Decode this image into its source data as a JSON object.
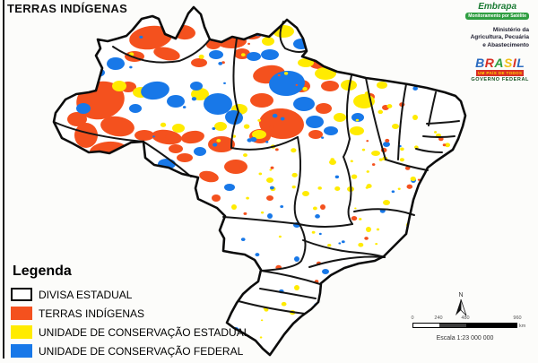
{
  "title": "TERRAS INDÍGENAS",
  "header_logos": {
    "embrapa_name": "Embrapa",
    "embrapa_tagline": "Monitoramento por Satélite",
    "ministry_line1": "Ministério da",
    "ministry_line2": "Agricultura, Pecuária",
    "ministry_line3": "e Abastecimento",
    "brasil": {
      "letters": [
        {
          "ch": "B",
          "color": "#2b6bc0"
        },
        {
          "ch": "R",
          "color": "#d93025"
        },
        {
          "ch": "A",
          "color": "#2e9e41"
        },
        {
          "ch": "S",
          "color": "#f2c017"
        },
        {
          "ch": "I",
          "color": "#d93025"
        },
        {
          "ch": "L",
          "color": "#2b6bc0"
        }
      ],
      "tagline": "UM PAÍS DE TODOS",
      "footer": "GOVERNO FEDERAL"
    }
  },
  "legend": {
    "title": "Legenda",
    "items": [
      {
        "label": "DIVISA ESTADUAL",
        "color": "#ffffff"
      },
      {
        "label": "TERRAS INDÍGENAS",
        "color": "#f4511e"
      },
      {
        "label": "UNIDADE DE CONSERVAÇÃO ESTADUAL",
        "color": "#ffeb00"
      },
      {
        "label": "UNIDADE DE CONSERVAÇÃO FEDERAL",
        "color": "#1878e8"
      }
    ]
  },
  "scalebar": {
    "north_label": "N",
    "ticks": [
      "0",
      "240",
      "480",
      "960"
    ],
    "unit": "km",
    "caption": "Escala 1:23 000 000"
  },
  "map": {
    "region": "Brasil",
    "land_color": "#ffffff",
    "boundary_color": "#111111"
  }
}
